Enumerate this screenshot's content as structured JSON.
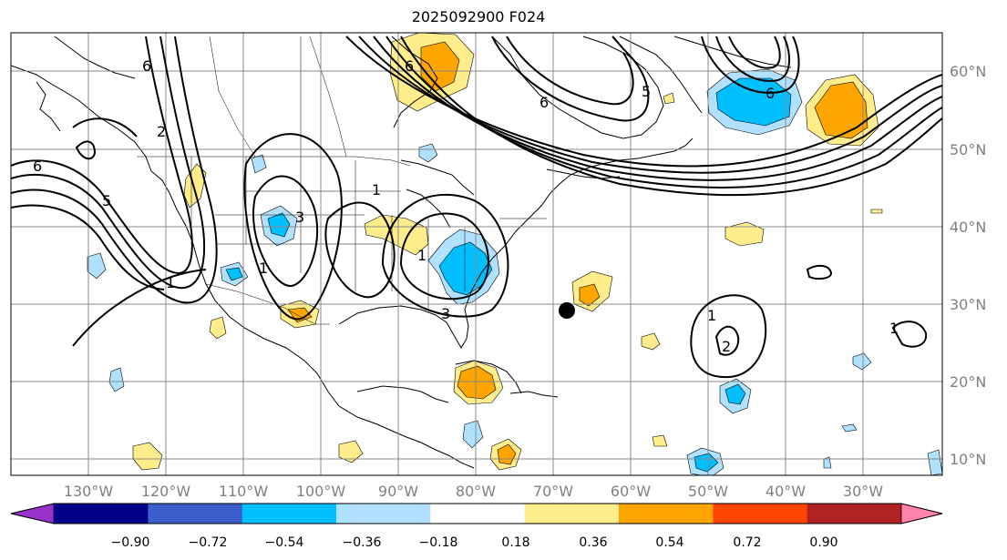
{
  "title": "2025092900 F024",
  "longitude_labels": [
    "130°W",
    "120°W",
    "110°W",
    "100°W",
    "90°W",
    "80°W",
    "70°W",
    "60°W",
    "50°W",
    "40°W",
    "30°W"
  ],
  "latitude_labels": [
    "60°N",
    "50°N",
    "40°N",
    "30°N",
    "20°N",
    "10°N"
  ],
  "colorbar": {
    "tick_labels": [
      "−0.90",
      "−0.72",
      "−0.54",
      "−0.36",
      "−0.18",
      "0.18",
      "0.36",
      "0.54",
      "0.72",
      "0.90"
    ],
    "colors": [
      "#9932CC",
      "#00008B",
      "#3A5FCD",
      "#00BFFF",
      "#B0E2FF",
      "#FFFFFF",
      "#FFEC8B",
      "#FFA500",
      "#FF4500",
      "#B22222",
      "#FF82AB"
    ]
  },
  "contour_labels": [
    "6",
    "6",
    "2",
    "5",
    "1",
    "1",
    "3",
    "1",
    "1",
    "3",
    "6",
    "6",
    "5",
    "6",
    "1",
    "2",
    "1"
  ],
  "marker": "storm-position-dot"
}
